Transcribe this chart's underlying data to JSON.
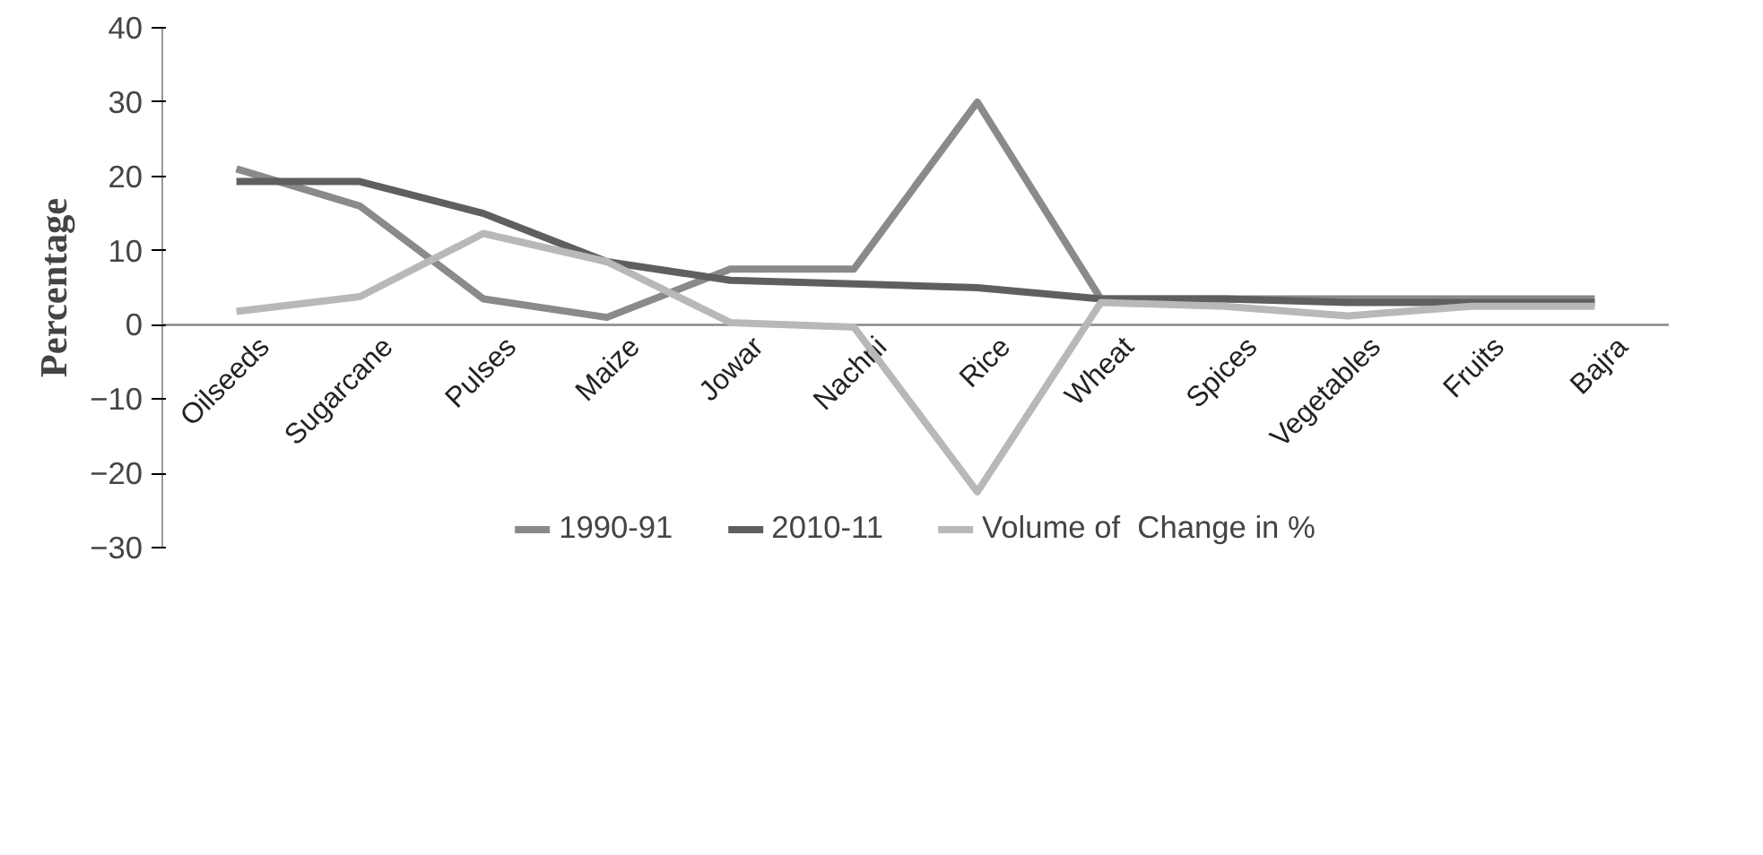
{
  "chart_data": {
    "type": "line",
    "ylabel": "Percentage",
    "categories": [
      "Oilseeds",
      "Sugarcane",
      "Pulses",
      "Maize",
      "Jowar",
      "Nachni",
      "Rice",
      "Wheat",
      "Spices",
      "Vegetables",
      "Fruits",
      "Bajra"
    ],
    "series": [
      {
        "name": "1990-91",
        "color": "#8a8a8a",
        "values": [
          21,
          16,
          3.5,
          1,
          7.5,
          7.5,
          30,
          3.5,
          3.5,
          3.5,
          3.5,
          3.5
        ]
      },
      {
        "name": "2010-11",
        "color": "#5f5f5f",
        "values": [
          19.3,
          19.3,
          15,
          8.5,
          6,
          5.5,
          5,
          3.5,
          3.5,
          3,
          3,
          3
        ]
      },
      {
        "name": "Volume of  Change in %",
        "color": "#b8b8b8",
        "values": [
          1.8,
          3.8,
          12.3,
          8.5,
          0.3,
          -0.3,
          -22.5,
          3,
          2.5,
          1.2,
          2.5,
          2.5
        ]
      }
    ],
    "ylim": [
      -30,
      40
    ],
    "yticks": [
      -30,
      -20,
      -10,
      0,
      10,
      20,
      30,
      40
    ],
    "grid": false,
    "legend": "bottom",
    "marker": "none",
    "line_style": "solid"
  }
}
